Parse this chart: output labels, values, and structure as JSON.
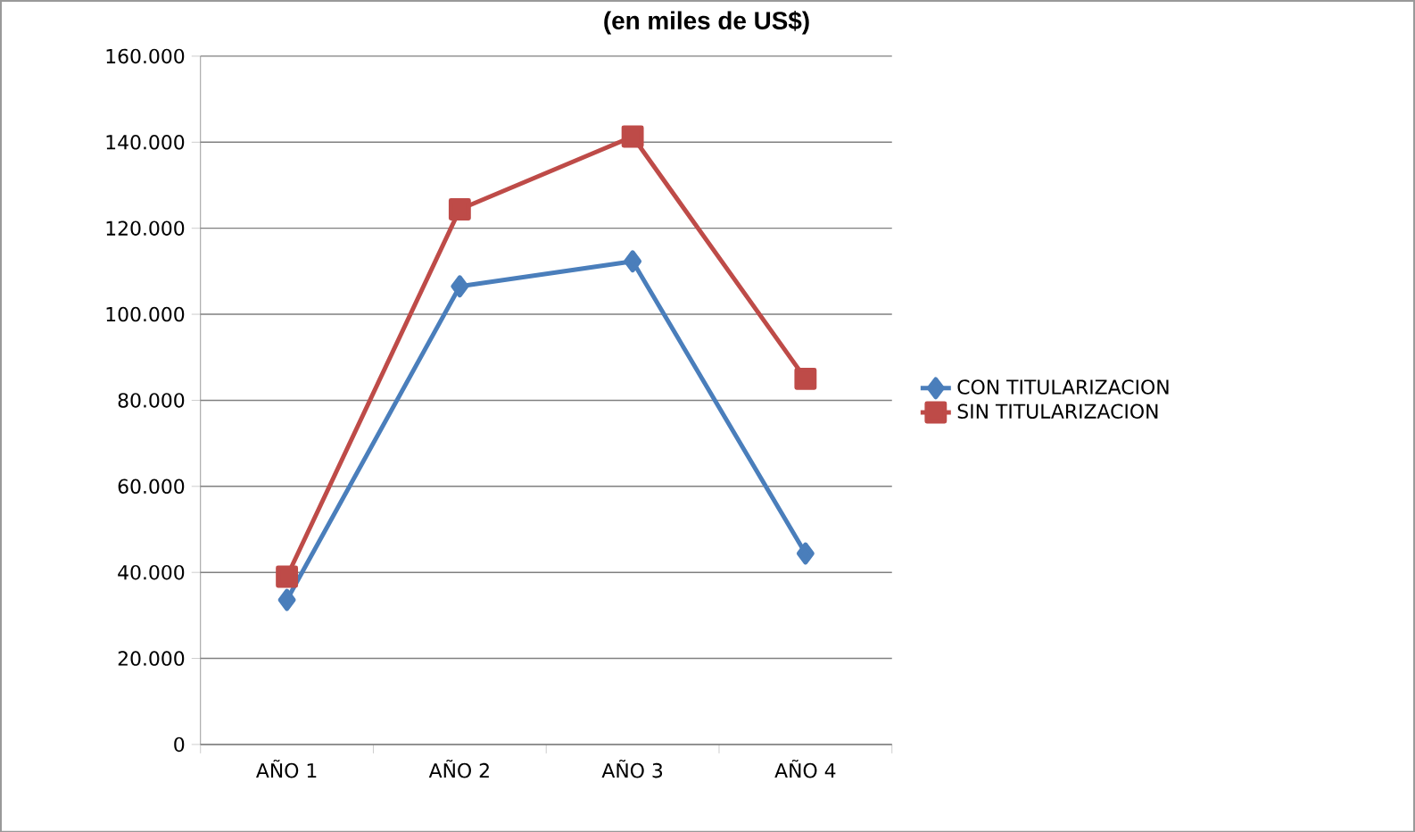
{
  "chart_data": {
    "type": "line",
    "title": "(en miles de US$)",
    "categories": [
      "AÑO 1",
      "AÑO 2",
      "AÑO 3",
      "AÑO 4"
    ],
    "series": [
      {
        "name": "CON TITULARIZACION",
        "color": "#4a7ebb",
        "marker": "diamond",
        "values": [
          33600,
          106500,
          112300,
          44400
        ]
      },
      {
        "name": "SIN TITULARIZACION",
        "color": "#be4b48",
        "marker": "square",
        "values": [
          39000,
          124400,
          141300,
          85000
        ]
      }
    ],
    "ylim": [
      0,
      160000
    ],
    "yticks": [
      {
        "value": 0,
        "label": "0"
      },
      {
        "value": 20000,
        "label": "20.000"
      },
      {
        "value": 40000,
        "label": "40.000"
      },
      {
        "value": 60000,
        "label": "60.000"
      },
      {
        "value": 80000,
        "label": "80.000"
      },
      {
        "value": 100000,
        "label": "100.000"
      },
      {
        "value": 120000,
        "label": "120.000"
      },
      {
        "value": 140000,
        "label": "140.000"
      },
      {
        "value": 160000,
        "label": "160.000"
      }
    ],
    "grid": "y",
    "legend": "right",
    "line_style": "solid"
  }
}
